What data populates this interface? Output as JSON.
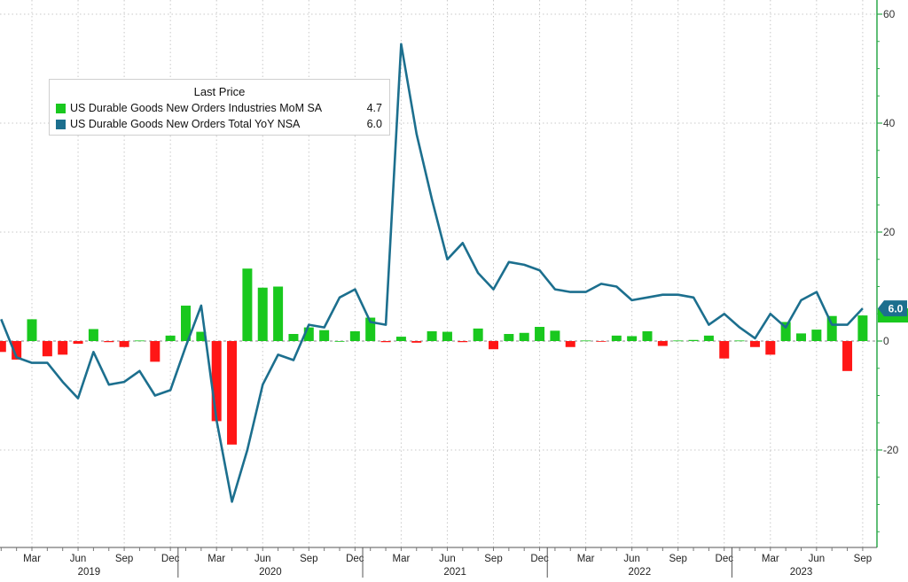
{
  "chart_data": {
    "type": "bar+line",
    "legend": {
      "title": "Last Price",
      "position": "top-left"
    },
    "colors": {
      "positive_bar": "#19c81e",
      "negative_bar": "#ff1616",
      "line": "#1c6f8e",
      "axis": "#2da84a",
      "grid": "#c8c8c8"
    },
    "y_axis": {
      "position": "right",
      "min": -38,
      "max": 60,
      "ticks": [
        60,
        40,
        20,
        0,
        -20
      ]
    },
    "x_month_labels": [
      "Mar",
      "Jun",
      "Sep",
      "Dec",
      "Mar",
      "Jun",
      "Sep",
      "Dec",
      "Mar",
      "Jun",
      "Sep",
      "Dec",
      "Mar",
      "Jun",
      "Sep",
      "Dec",
      "Mar",
      "Jun",
      "Sep"
    ],
    "x_year_labels": [
      "2019",
      "2020",
      "2021",
      "2022",
      "2023"
    ],
    "months": [
      "Jan 2019",
      "Feb 2019",
      "Mar 2019",
      "Apr 2019",
      "May 2019",
      "Jun 2019",
      "Jul 2019",
      "Aug 2019",
      "Sep 2019",
      "Oct 2019",
      "Nov 2019",
      "Dec 2019",
      "Jan 2020",
      "Feb 2020",
      "Mar 2020",
      "Apr 2020",
      "May 2020",
      "Jun 2020",
      "Jul 2020",
      "Aug 2020",
      "Sep 2020",
      "Oct 2020",
      "Nov 2020",
      "Dec 2020",
      "Jan 2021",
      "Feb 2021",
      "Mar 2021",
      "Apr 2021",
      "May 2021",
      "Jun 2021",
      "Jul 2021",
      "Aug 2021",
      "Sep 2021",
      "Oct 2021",
      "Nov 2021",
      "Dec 2021",
      "Jan 2022",
      "Feb 2022",
      "Mar 2022",
      "Apr 2022",
      "May 2022",
      "Jun 2022",
      "Jul 2022",
      "Aug 2022",
      "Sep 2022",
      "Oct 2022",
      "Nov 2022",
      "Dec 2022",
      "Jan 2023",
      "Feb 2023",
      "Mar 2023",
      "Apr 2023",
      "May 2023",
      "Jun 2023",
      "Jul 2023",
      "Aug 2023",
      "Sep 2023"
    ],
    "series": [
      {
        "name": "US Durable Goods New Orders Industries MoM SA",
        "last_price": "4.7",
        "kind": "bar",
        "values": [
          -2.0,
          -3.4,
          4.0,
          -2.8,
          -2.5,
          -0.5,
          2.2,
          -0.2,
          -1.1,
          0.1,
          -3.8,
          1.0,
          6.5,
          1.7,
          -14.7,
          -19.0,
          13.3,
          9.8,
          10.0,
          1.3,
          2.5,
          2.0,
          0.0,
          1.8,
          4.3,
          -0.2,
          0.8,
          -0.3,
          1.8,
          1.7,
          -0.2,
          2.3,
          -1.5,
          1.3,
          1.5,
          2.6,
          1.9,
          -1.1,
          0.1,
          -0.1,
          1.0,
          0.9,
          1.8,
          -0.9,
          0.1,
          0.2,
          1.0,
          -3.2,
          0.1,
          -1.1,
          -2.5,
          3.5,
          1.4,
          2.1,
          4.6,
          -5.5,
          4.7
        ]
      },
      {
        "name": "US Durable Goods New Orders Total YoY NSA",
        "last_price": "6.0",
        "kind": "line",
        "values": [
          4.0,
          -3.0,
          -4.0,
          -4.0,
          -7.5,
          -10.5,
          -2.0,
          -8.0,
          -7.5,
          -5.5,
          -10.0,
          -9.0,
          -1.0,
          6.5,
          -14.5,
          -29.5,
          -20.0,
          -8.0,
          -2.5,
          -3.5,
          3.0,
          2.5,
          8.0,
          9.5,
          3.5,
          3.0,
          54.5,
          38.0,
          26.0,
          15.0,
          18.0,
          12.5,
          9.5,
          14.5,
          14.0,
          13.0,
          9.5,
          9.0,
          9.0,
          10.5,
          10.0,
          7.5,
          8.0,
          8.5,
          8.5,
          8.0,
          3.0,
          5.0,
          2.5,
          0.5,
          5.0,
          2.5,
          7.5,
          9.0,
          3.0,
          3.0,
          6.0
        ]
      }
    ]
  }
}
